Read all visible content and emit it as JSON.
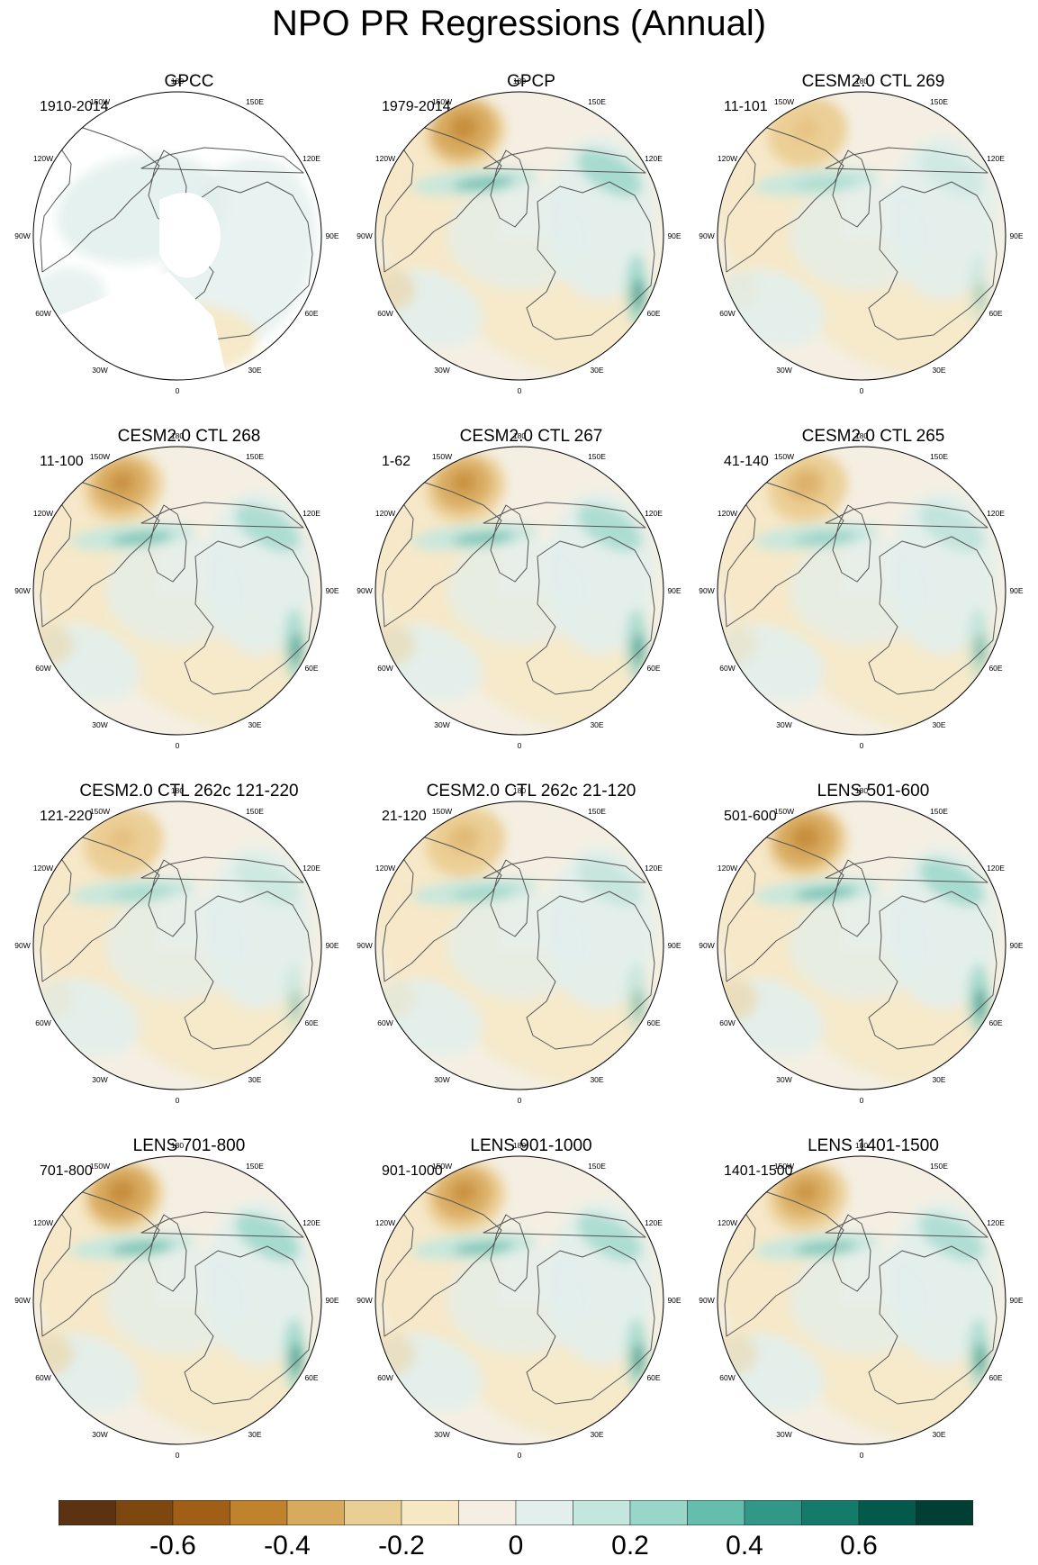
{
  "title": "NPO PR Regressions (Annual)",
  "panels": [
    {
      "title": "GPCC",
      "period": "1910-2014",
      "masked": true
    },
    {
      "title": "GPCP",
      "period": "1979-2014",
      "strength": 1.0
    },
    {
      "title": "CESM2.0 CTL 269",
      "period": "11-101",
      "strength": 0.3
    },
    {
      "title": "CESM2.0 CTL 268",
      "period": "11-100",
      "strength": 0.9
    },
    {
      "title": "CESM2.0 CTL 267",
      "period": "1-62",
      "strength": 0.9
    },
    {
      "title": "CESM2.0 CTL 265",
      "period": "41-140",
      "strength": 0.55
    },
    {
      "title": "CESM2.0 CTL 262c 121-220",
      "period": "121-220",
      "strength": 0.35
    },
    {
      "title": "CESM2.0 CTL 262c 21-120",
      "period": "21-120",
      "strength": 0.45
    },
    {
      "title": "LENS 501-600",
      "period": "501-600",
      "strength": 1.0
    },
    {
      "title": "LENS 701-800",
      "period": "701-800",
      "strength": 1.0
    },
    {
      "title": "LENS 901-1000",
      "period": "901-1000",
      "strength": 0.9
    },
    {
      "title": "LENS 1401-1500",
      "period": "1401-1500",
      "strength": 0.85
    }
  ],
  "longitude_labels": [
    "180",
    "150E",
    "120E",
    "90E",
    "60E",
    "30E",
    "0",
    "30W",
    "60W",
    "90W",
    "120W",
    "150W"
  ],
  "colorbar": {
    "levels": [
      "#5c3310",
      "#7f4710",
      "#a05e17",
      "#c0822d",
      "#d8aa5e",
      "#ebce94",
      "#f6e8c5",
      "#f4efe2",
      "#e2efec",
      "#c3e7df",
      "#97d6c8",
      "#65bdad",
      "#319888",
      "#147a6a",
      "#03594b",
      "#013e33"
    ],
    "tick_labels": [
      "-0.6",
      "-0.4",
      "-0.2",
      "0",
      "0.2",
      "0.4",
      "0.6"
    ],
    "tick_values": [
      -0.6,
      -0.4,
      -0.2,
      0,
      0.2,
      0.4,
      0.6
    ]
  }
}
